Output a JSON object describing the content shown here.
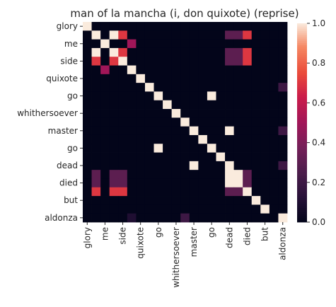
{
  "chart_data": {
    "type": "heatmap",
    "title": "man of la mancha (i, don quixote) (reprise)",
    "xlabel": "",
    "ylabel": "",
    "labels": [
      "glory",
      "",
      "me",
      "",
      "side",
      "",
      "quixote",
      "",
      "go",
      "",
      "whithersoever",
      "",
      "master",
      "",
      "go",
      "",
      "dead",
      "",
      "died",
      "",
      "but",
      "",
      "aldonza"
    ],
    "tick_labels": [
      "glory",
      "me",
      "side",
      "quixote",
      "go",
      "whithersoever",
      "master",
      "go",
      "dead",
      "died",
      "but",
      "aldonza"
    ],
    "matrix": [
      [
        1,
        0,
        0,
        0,
        0,
        0,
        0,
        0,
        0,
        0,
        0,
        0,
        0,
        0,
        0,
        0,
        0,
        0,
        0,
        0,
        0,
        0,
        0
      ],
      [
        0,
        1,
        0,
        1,
        0.7,
        0,
        0,
        0,
        0,
        0,
        0,
        0,
        0,
        0,
        0,
        0,
        0.3,
        0.3,
        0.7,
        0,
        0,
        0,
        0
      ],
      [
        0,
        0,
        1,
        0,
        0,
        0.5,
        0,
        0,
        0,
        0,
        0,
        0,
        0,
        0,
        0,
        0,
        0,
        0,
        0,
        0,
        0,
        0,
        0
      ],
      [
        0,
        1,
        0,
        1,
        0.7,
        0,
        0,
        0,
        0,
        0,
        0,
        0,
        0,
        0,
        0,
        0,
        0.3,
        0.3,
        0.7,
        0,
        0,
        0,
        0
      ],
      [
        0,
        0.7,
        0,
        0.7,
        1,
        0,
        0,
        0,
        0,
        0,
        0,
        0,
        0,
        0,
        0,
        0,
        0.3,
        0.3,
        0.7,
        0,
        0,
        0,
        0
      ],
      [
        0,
        0,
        0.5,
        0,
        0,
        1,
        0,
        0,
        0,
        0,
        0,
        0,
        0,
        0,
        0,
        0,
        0,
        0,
        0,
        0,
        0,
        0,
        0
      ],
      [
        0,
        0,
        0,
        0,
        0,
        0,
        1,
        0,
        0,
        0,
        0,
        0,
        0,
        0,
        0,
        0,
        0,
        0,
        0,
        0,
        0,
        0,
        0
      ],
      [
        0,
        0,
        0,
        0,
        0,
        0,
        0,
        1,
        0,
        0,
        0,
        0,
        0,
        0,
        0,
        0,
        0,
        0,
        0,
        0,
        0,
        0,
        0.2
      ],
      [
        0,
        0,
        0,
        0,
        0,
        0,
        0,
        0,
        1,
        0,
        0,
        0,
        0,
        0,
        1,
        0,
        0,
        0,
        0,
        0,
        0,
        0,
        0
      ],
      [
        0,
        0,
        0,
        0,
        0,
        0,
        0,
        0,
        0,
        1,
        0,
        0,
        0,
        0,
        0,
        0,
        0,
        0,
        0,
        0,
        0,
        0,
        0
      ],
      [
        0,
        0,
        0,
        0,
        0,
        0,
        0,
        0,
        0,
        0,
        1,
        0,
        0,
        0,
        0,
        0,
        0,
        0,
        0,
        0,
        0,
        0,
        0
      ],
      [
        0,
        0,
        0,
        0,
        0,
        0,
        0,
        0,
        0,
        0,
        0,
        1,
        0,
        0,
        0,
        0,
        0,
        0,
        0,
        0,
        0,
        0,
        0
      ],
      [
        0,
        0,
        0,
        0,
        0,
        0,
        0,
        0,
        0,
        0,
        0,
        0,
        1,
        0,
        0,
        0,
        1,
        0,
        0,
        0,
        0,
        0,
        0.2
      ],
      [
        0,
        0,
        0,
        0,
        0,
        0,
        0,
        0,
        0,
        0,
        0,
        0,
        0,
        1,
        0,
        0,
        0,
        0,
        0,
        0,
        0,
        0,
        0
      ],
      [
        0,
        0,
        0,
        0,
        0,
        0,
        0,
        0,
        1,
        0,
        0,
        0,
        0,
        0,
        1,
        0,
        0,
        0,
        0,
        0,
        0,
        0,
        0
      ],
      [
        0,
        0,
        0,
        0,
        0,
        0,
        0,
        0,
        0,
        0,
        0,
        0,
        0,
        0,
        0,
        1,
        0,
        0,
        0,
        0,
        0,
        0,
        0
      ],
      [
        0,
        0,
        0,
        0,
        0,
        0,
        0,
        0,
        0,
        0,
        0,
        0,
        1,
        0,
        0,
        0,
        1,
        0,
        0,
        0,
        0,
        0,
        0.2
      ],
      [
        0,
        0.3,
        0,
        0.3,
        0.3,
        0,
        0,
        0,
        0,
        0,
        0,
        0,
        0,
        0,
        0,
        0,
        1,
        1,
        0.3,
        0,
        0,
        0,
        0
      ],
      [
        0,
        0.3,
        0,
        0.3,
        0.3,
        0,
        0,
        0,
        0,
        0,
        0,
        0,
        0,
        0,
        0,
        0,
        1,
        1,
        0.3,
        0,
        0,
        0,
        0
      ],
      [
        0,
        0.7,
        0,
        0.7,
        0.7,
        0,
        0,
        0,
        0,
        0,
        0,
        0,
        0,
        0,
        0,
        0,
        0.3,
        0.3,
        1,
        0,
        0,
        0,
        0
      ],
      [
        0,
        0,
        0,
        0,
        0,
        0,
        0,
        0,
        0,
        0,
        0,
        0,
        0,
        0,
        0,
        0,
        0,
        0,
        0,
        1,
        0,
        0,
        0
      ],
      [
        0,
        0,
        0,
        0,
        0,
        0,
        0,
        0,
        0,
        0,
        0,
        0,
        0,
        0,
        0,
        0,
        0,
        0,
        0,
        0,
        1,
        0,
        0
      ],
      [
        0,
        0,
        0,
        0,
        0,
        0.1,
        0,
        0,
        0,
        0,
        0,
        0.2,
        0,
        0,
        0,
        0,
        0,
        0,
        0,
        0,
        0,
        0,
        1
      ]
    ],
    "colorbar": {
      "min": 0.0,
      "max": 1.0,
      "ticks": [
        "0.0",
        "0.2",
        "0.4",
        "0.6",
        "0.8",
        "1.0"
      ]
    },
    "colormap": "rocket"
  }
}
